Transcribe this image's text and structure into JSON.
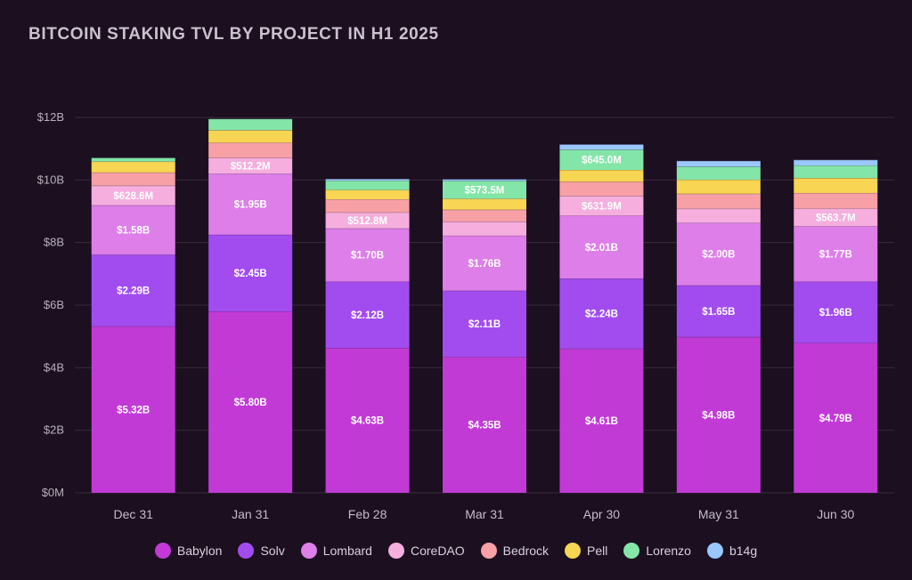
{
  "chart_data": {
    "type": "bar",
    "stacked": true,
    "title": "BITCOIN STAKING TVL BY PROJECT IN H1 2025",
    "xlabel": "",
    "ylabel": "",
    "categories": [
      "Dec 31",
      "Jan 31",
      "Feb 28",
      "Mar 31",
      "Apr 30",
      "May 31",
      "Jun 30"
    ],
    "ylim": [
      0,
      12
    ],
    "yticks": [
      0,
      2,
      4,
      6,
      8,
      10,
      12
    ],
    "ytick_labels": [
      "$0M",
      "$2B",
      "$4B",
      "$6B",
      "$8B",
      "$10B",
      "$12B"
    ],
    "grid": true,
    "legend_position": "bottom",
    "series": [
      {
        "name": "Babylon",
        "color": "#c13ad6",
        "values": [
          5.32,
          5.8,
          4.63,
          4.35,
          4.61,
          4.98,
          4.79
        ],
        "labels": [
          "$5.32B",
          "$5.80B",
          "$4.63B",
          "$4.35B",
          "$4.61B",
          "$4.98B",
          "$4.79B"
        ]
      },
      {
        "name": "Solv",
        "color": "#a24cf0",
        "values": [
          2.29,
          2.45,
          2.12,
          2.11,
          2.24,
          1.65,
          1.96
        ],
        "labels": [
          "$2.29B",
          "$2.45B",
          "$2.12B",
          "$2.11B",
          "$2.24B",
          "$1.65B",
          "$1.96B"
        ]
      },
      {
        "name": "Lombard",
        "color": "#dd7ee9",
        "values": [
          1.58,
          1.95,
          1.7,
          1.76,
          2.01,
          2.0,
          1.77
        ],
        "labels": [
          "$1.58B",
          "$1.95B",
          "$1.70B",
          "$1.76B",
          "$2.01B",
          "$2.00B",
          "$1.77B"
        ]
      },
      {
        "name": "CoreDAO",
        "color": "#f5aede",
        "values": [
          0.6286,
          0.5122,
          0.5128,
          0.45,
          0.6319,
          0.45,
          0.5637
        ],
        "labels": [
          "$628.6M",
          "$512.2M",
          "$512.8M",
          "",
          "$631.9M",
          "",
          "$563.7M"
        ]
      },
      {
        "name": "Bedrock",
        "color": "#f7a0a6",
        "values": [
          0.42,
          0.48,
          0.42,
          0.38,
          0.45,
          0.48,
          0.5
        ],
        "labels": [
          "",
          "",
          "",
          "",
          "",
          "",
          ""
        ]
      },
      {
        "name": "Pell",
        "color": "#f8d552",
        "values": [
          0.35,
          0.4,
          0.3,
          0.35,
          0.38,
          0.45,
          0.48
        ],
        "labels": [
          "",
          "",
          "",
          "",
          "",
          "",
          ""
        ]
      },
      {
        "name": "Lorenzo",
        "color": "#84e5a8",
        "values": [
          0.12,
          0.36,
          0.3,
          0.5735,
          0.645,
          0.42,
          0.4
        ],
        "labels": [
          "",
          "",
          "",
          "$573.5M",
          "$645.0M",
          "",
          ""
        ]
      },
      {
        "name": "b14g",
        "color": "#9ac7ff",
        "values": [
          0.0,
          0.0,
          0.05,
          0.05,
          0.17,
          0.18,
          0.18
        ],
        "labels": [
          "",
          "",
          "",
          "",
          "",
          "",
          ""
        ]
      }
    ]
  }
}
